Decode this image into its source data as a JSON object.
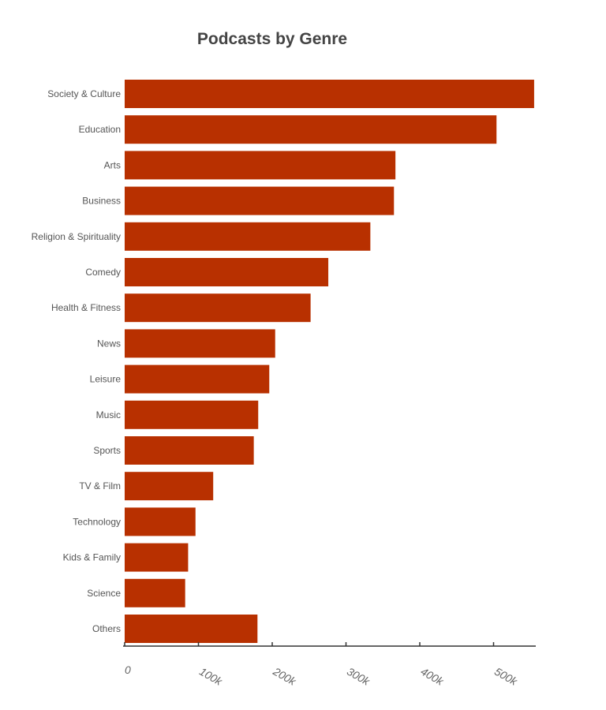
{
  "chart_data": {
    "type": "bar",
    "orientation": "horizontal",
    "title": "Podcasts by Genre",
    "xlabel": "",
    "ylabel": "",
    "categories": [
      "Society & Culture",
      "Education",
      "Arts",
      "Business",
      "Religion & Spirituality",
      "Comedy",
      "Health & Fitness",
      "News",
      "Leisure",
      "Music",
      "Sports",
      "TV & Film",
      "Technology",
      "Kids & Family",
      "Science",
      "Others"
    ],
    "values": [
      555000,
      504000,
      367000,
      365000,
      333000,
      276000,
      252000,
      204000,
      196000,
      181000,
      175000,
      120000,
      96000,
      86000,
      82000,
      180000
    ],
    "xlim": [
      0,
      556000
    ],
    "x_ticks": [
      0,
      100000,
      200000,
      300000,
      400000,
      500000
    ],
    "x_tick_labels": [
      "0",
      "100k",
      "200k",
      "300k",
      "400k",
      "500k"
    ],
    "grid": false,
    "bar_color": "#b83000"
  }
}
